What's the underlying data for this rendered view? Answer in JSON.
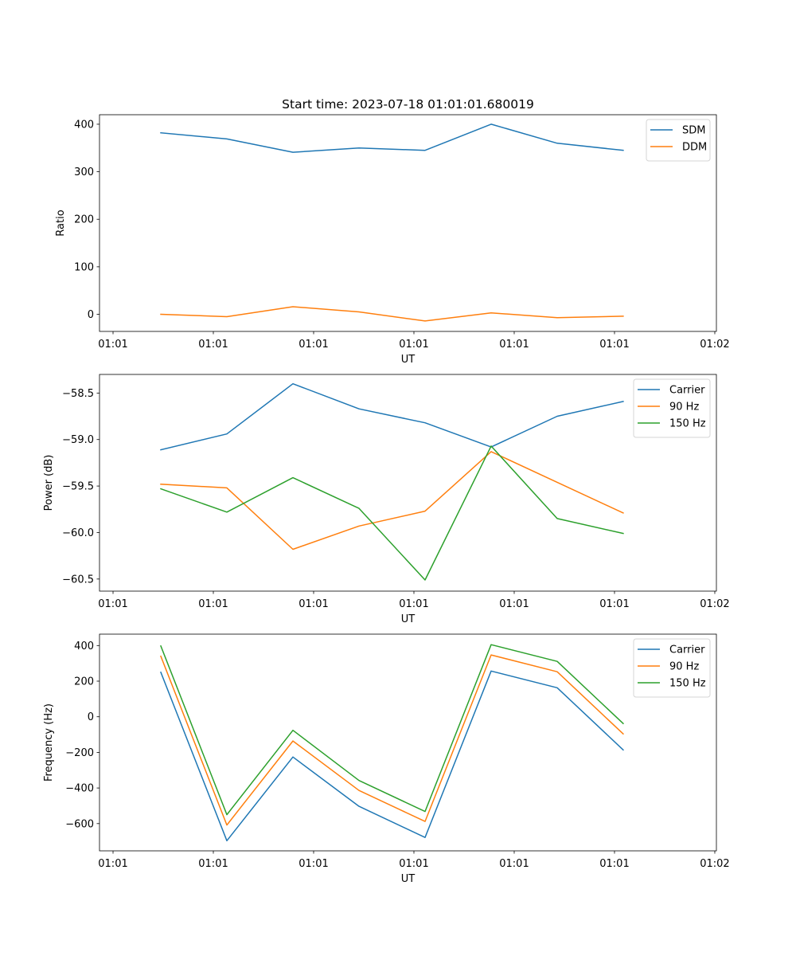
{
  "figure": {
    "title": "Start time: 2023-07-18 01:01:01.680019"
  },
  "chart_data": [
    {
      "type": "line",
      "title": "Start time: 2023-07-18 01:01:01.680019",
      "xlabel": "UT",
      "ylabel": "Ratio",
      "x_unit": "seconds after 01:01:00",
      "x": [
        4.76,
        11.35,
        17.94,
        24.52,
        31.11,
        37.7,
        44.29,
        50.87
      ],
      "xlim": [
        -1.35,
        60.16
      ],
      "xticks": [
        0,
        10,
        20,
        30,
        40,
        50,
        60
      ],
      "xtick_labels": [
        "01:01",
        "01:01",
        "01:01",
        "01:01",
        "01:01",
        "01:01",
        "01:02"
      ],
      "ylim": [
        -36,
        420
      ],
      "yticks": [
        0,
        100,
        200,
        300,
        400
      ],
      "ytick_labels": [
        "0",
        "100",
        "200",
        "300",
        "400"
      ],
      "grid": false,
      "legend": "top-right",
      "series": [
        {
          "name": "SDM",
          "color": "#1f77b4",
          "values": [
            382,
            369,
            341,
            350,
            345,
            400,
            360,
            345
          ]
        },
        {
          "name": "DDM",
          "color": "#ff7f0e",
          "values": [
            0,
            -5,
            16,
            5,
            -14,
            3,
            -7,
            -4
          ]
        }
      ]
    },
    {
      "type": "line",
      "title": "",
      "xlabel": "UT",
      "ylabel": "Power (dB)",
      "x_unit": "seconds after 01:01:00",
      "x": [
        4.76,
        11.35,
        17.94,
        24.52,
        31.11,
        37.7,
        44.29,
        50.87
      ],
      "xlim": [
        -1.35,
        60.16
      ],
      "xticks": [
        0,
        10,
        20,
        30,
        40,
        50,
        60
      ],
      "xtick_labels": [
        "01:01",
        "01:01",
        "01:01",
        "01:01",
        "01:01",
        "01:01",
        "01:02"
      ],
      "ylim": [
        -60.63,
        -58.3
      ],
      "yticks": [
        -60.5,
        -60.0,
        -59.5,
        -59.0,
        -58.5
      ],
      "ytick_labels": [
        "−60.5",
        "−60.0",
        "−59.5",
        "−59.0",
        "−58.5"
      ],
      "grid": false,
      "legend": "top-right",
      "series": [
        {
          "name": "Carrier",
          "color": "#1f77b4",
          "values": [
            -59.11,
            -58.94,
            -58.4,
            -58.67,
            -58.82,
            -59.08,
            -58.75,
            -58.59
          ]
        },
        {
          "name": "90 Hz",
          "color": "#ff7f0e",
          "values": [
            -59.48,
            -59.52,
            -60.18,
            -59.93,
            -59.77,
            -59.13,
            -59.46,
            -59.79
          ]
        },
        {
          "name": "150 Hz",
          "color": "#2ca02c",
          "values": [
            -59.53,
            -59.78,
            -59.41,
            -59.74,
            -60.51,
            -59.07,
            -59.85,
            -60.01
          ]
        }
      ]
    },
    {
      "type": "line",
      "title": "",
      "xlabel": "UT",
      "ylabel": "Frequency (Hz)",
      "x_unit": "seconds after 01:01:00",
      "x": [
        4.76,
        11.35,
        17.94,
        24.52,
        31.11,
        37.7,
        44.29,
        50.87
      ],
      "xlim": [
        -1.35,
        60.16
      ],
      "xticks": [
        0,
        10,
        20,
        30,
        40,
        50,
        60
      ],
      "xtick_labels": [
        "01:01",
        "01:01",
        "01:01",
        "01:01",
        "01:01",
        "01:01",
        "01:02"
      ],
      "ylim": [
        -753,
        464
      ],
      "yticks": [
        -600,
        -400,
        -200,
        0,
        200,
        400
      ],
      "ytick_labels": [
        "−600",
        "−400",
        "−200",
        "0",
        "200",
        "400"
      ],
      "grid": false,
      "legend": "top-right",
      "series": [
        {
          "name": "Carrier",
          "color": "#1f77b4",
          "values": [
            250,
            -696,
            -226,
            -503,
            -678,
            257,
            163,
            -186
          ]
        },
        {
          "name": "90 Hz",
          "color": "#ff7f0e",
          "values": [
            340,
            -608,
            -136,
            -414,
            -588,
            347,
            253,
            -96
          ]
        },
        {
          "name": "150 Hz",
          "color": "#2ca02c",
          "values": [
            398,
            -550,
            -76,
            -358,
            -532,
            405,
            311,
            -38
          ]
        }
      ]
    }
  ]
}
